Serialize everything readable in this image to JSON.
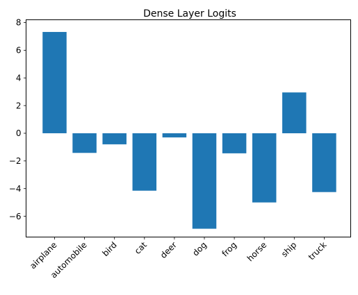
{
  "chart_data": {
    "type": "bar",
    "title": "Dense Layer Logits",
    "xlabel": "",
    "ylabel": "",
    "categories": [
      "airplane",
      "automobile",
      "bird",
      "cat",
      "deer",
      "dog",
      "frog",
      "horse",
      "ship",
      "truck"
    ],
    "values": [
      7.32,
      -1.42,
      -0.8,
      -4.15,
      -0.3,
      -6.9,
      -1.45,
      -5.0,
      2.95,
      -4.25
    ],
    "ylim": [
      -7.5,
      8.2
    ],
    "yticks": [
      -6,
      -4,
      -2,
      0,
      2,
      4,
      6,
      8
    ],
    "ytick_labels": [
      "−6",
      "−4",
      "−2",
      "0",
      "2",
      "4",
      "6",
      "8"
    ],
    "bar_color": "#1f77b4",
    "grid": false,
    "legend": "none"
  }
}
